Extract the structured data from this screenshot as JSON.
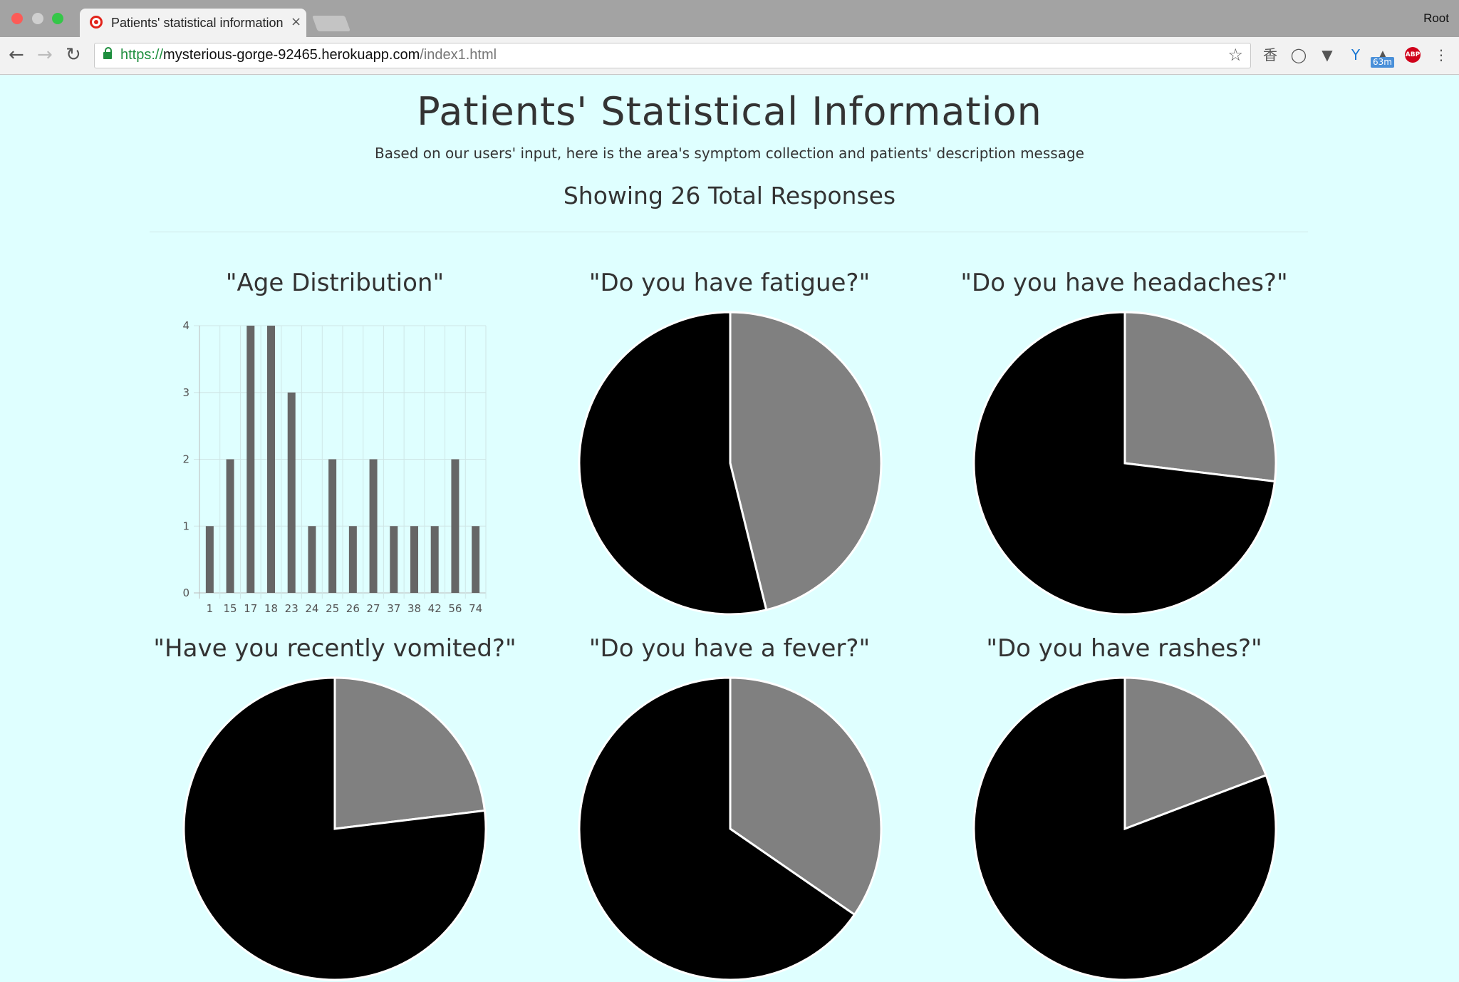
{
  "browser": {
    "tab_title": "Patients' statistical information",
    "tab_close": "×",
    "profile_name": "Root",
    "url_scheme": "https://",
    "url_host": "mysterious-gorge-92465.herokuapp.com",
    "url_path": "/index1.html",
    "ext_badge": "63m",
    "ext_abp": "ABP",
    "icons": [
      "back-arrow-icon",
      "forward-arrow-icon",
      "reload-icon",
      "lock-icon",
      "star-icon",
      "extension-icons"
    ]
  },
  "page": {
    "title": "Patients' Statistical Information",
    "subtitle": "Based on our users' input, here is the area's symptom collection and patients' description message",
    "responses": "Showing 26 Total Responses"
  },
  "colors": {
    "background": "#dfffff",
    "bar": "#666666",
    "pie_yes": "#808080",
    "pie_no": "#000000"
  },
  "chart_data": [
    {
      "type": "bar",
      "title": "\"Age Distribution\"",
      "categories": [
        "1",
        "15",
        "17",
        "18",
        "23",
        "24",
        "25",
        "26",
        "27",
        "37",
        "38",
        "42",
        "56",
        "74"
      ],
      "values": [
        1,
        2,
        4,
        4,
        3,
        1,
        2,
        1,
        2,
        1,
        1,
        1,
        2,
        1
      ],
      "yticks": [
        "0",
        "1",
        "2",
        "3",
        "4"
      ],
      "ylim": [
        0,
        4
      ],
      "grid": true
    },
    {
      "type": "pie",
      "title": "\"Do you have fatigue?\"",
      "values": [
        12,
        14
      ]
    },
    {
      "type": "pie",
      "title": "\"Do you have headaches?\"",
      "values": [
        7,
        19
      ]
    },
    {
      "type": "pie",
      "title": "\"Have you recently vomited?\"",
      "values": [
        6,
        20
      ]
    },
    {
      "type": "pie",
      "title": "\"Do you have a fever?\"",
      "values": [
        9,
        17
      ]
    },
    {
      "type": "pie",
      "title": "\"Do you have rashes?\"",
      "values": [
        5,
        21
      ]
    }
  ]
}
